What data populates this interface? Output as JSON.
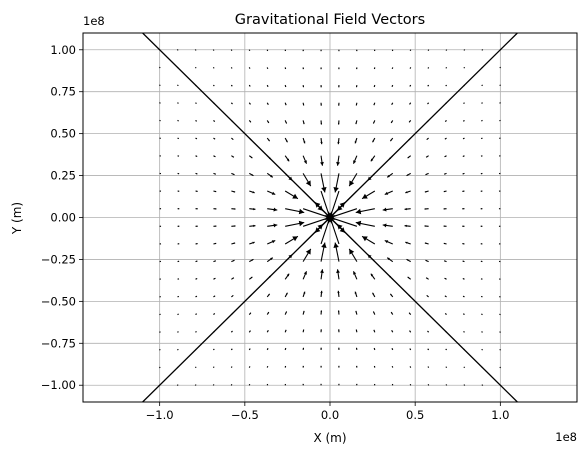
{
  "chart_data": {
    "type": "quiver",
    "title": "Gravitational Field Vectors",
    "xlabel": "X (m)",
    "ylabel": "Y (m)",
    "x_offset_label": "1e8",
    "y_offset_label": "1e8",
    "xlim": [
      -1.45,
      1.45
    ],
    "ylim": [
      -1.1,
      1.1
    ],
    "x_ticks": [
      -1.0,
      -0.5,
      0.0,
      0.5,
      1.0
    ],
    "x_tick_labels": [
      "−1.0",
      "−0.5",
      "0.0",
      "0.5",
      "1.0"
    ],
    "y_ticks": [
      -1.0,
      -0.75,
      -0.5,
      -0.25,
      0.0,
      0.25,
      0.5,
      0.75,
      1.0
    ],
    "y_tick_labels": [
      "−1.00",
      "−0.75",
      "−0.50",
      "−0.25",
      "0.00",
      "0.25",
      "0.50",
      "0.75",
      "1.00"
    ],
    "grid": true,
    "grid_extent": [
      -1.0,
      1.0
    ],
    "grid_points_per_axis": 20,
    "field": "inverse-square toward origin",
    "diagonal_lines": [
      {
        "x": [
          -1.1,
          1.1
        ],
        "y": [
          -1.1,
          1.1
        ]
      },
      {
        "x": [
          -1.1,
          1.1
        ],
        "y": [
          1.1,
          -1.1
        ]
      }
    ],
    "colors": {
      "arrows": "#000000",
      "lines": "#000000",
      "grid": "#b0b0b0",
      "frame": "#000000"
    }
  }
}
